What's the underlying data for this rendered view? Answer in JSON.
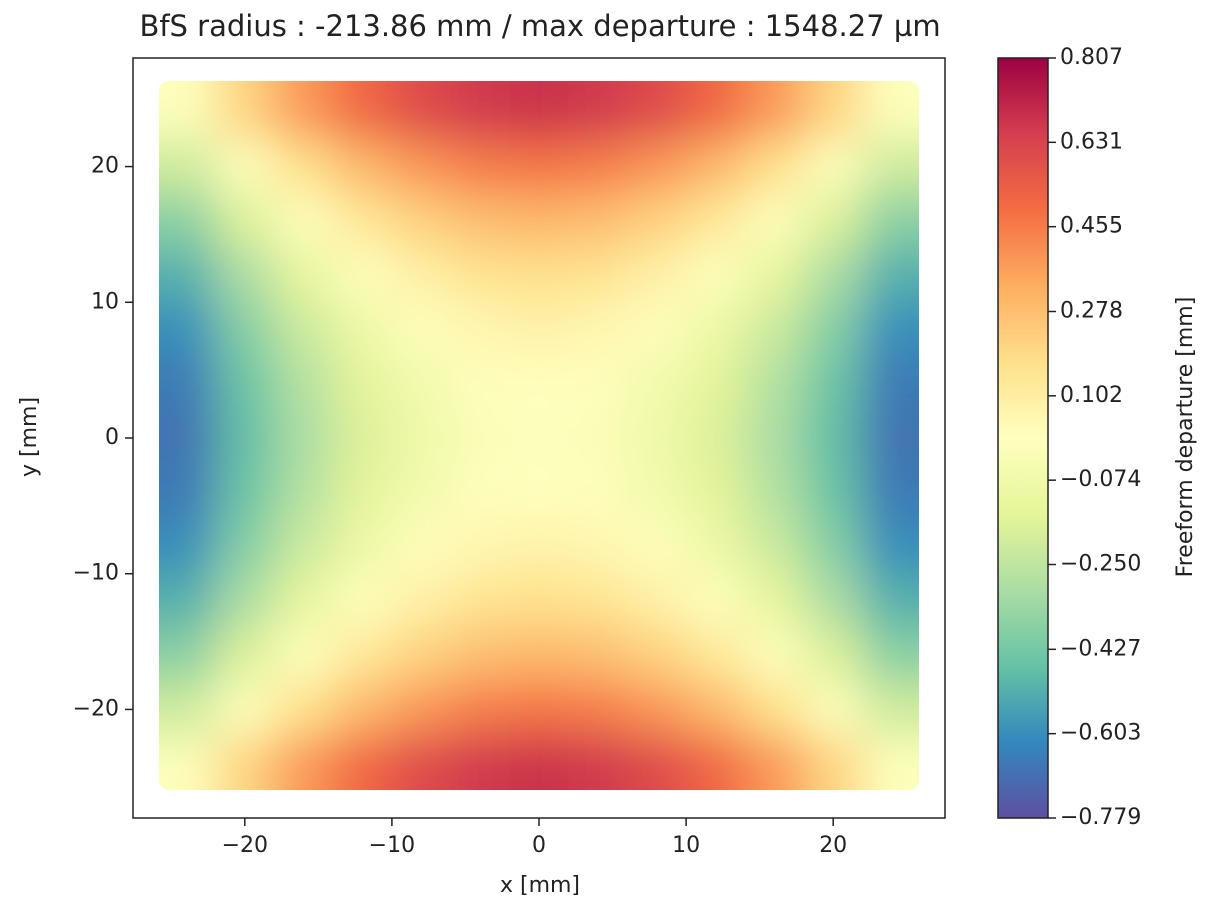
{
  "chart_data": {
    "type": "heatmap",
    "title": "BfS radius : -213.86 mm /  max departure : 1548.27 µm",
    "x_label": "x [mm]",
    "y_label": "y [mm]",
    "colorbar_label": "Freeform departure [mm]",
    "x": [
      -24,
      -20,
      -16,
      -12,
      -8,
      -4,
      0,
      4,
      8,
      12,
      16,
      20,
      24
    ],
    "y": [
      24,
      20,
      16,
      12,
      8,
      4,
      0,
      -4,
      -8,
      -12,
      -16,
      -20,
      -24
    ],
    "z": [
      [
        0,
        0.21,
        0.38,
        0.51,
        0.6,
        0.66,
        0.68,
        0.66,
        0.6,
        0.51,
        0.38,
        0.21,
        0
      ],
      [
        -0.21,
        0,
        0.17,
        0.3,
        0.39,
        0.45,
        0.47,
        0.45,
        0.39,
        0.3,
        0.17,
        0,
        -0.21
      ],
      [
        -0.38,
        -0.17,
        0,
        0.13,
        0.22,
        0.28,
        0.3,
        0.28,
        0.22,
        0.13,
        0,
        -0.17,
        -0.38
      ],
      [
        -0.51,
        -0.3,
        -0.13,
        0,
        0.09,
        0.15,
        0.17,
        0.15,
        0.09,
        0,
        -0.13,
        -0.3,
        -0.51
      ],
      [
        -0.6,
        -0.39,
        -0.22,
        -0.09,
        0,
        0.06,
        0.08,
        0.06,
        0,
        -0.09,
        -0.22,
        -0.39,
        -0.6
      ],
      [
        -0.66,
        -0.45,
        -0.28,
        -0.15,
        -0.06,
        0,
        0.02,
        0,
        -0.06,
        -0.15,
        -0.28,
        -0.45,
        -0.66
      ],
      [
        -0.68,
        -0.47,
        -0.3,
        -0.17,
        -0.08,
        -0.02,
        0,
        -0.02,
        -0.08,
        -0.17,
        -0.3,
        -0.47,
        -0.68
      ],
      [
        -0.66,
        -0.45,
        -0.28,
        -0.15,
        -0.06,
        0,
        0.02,
        0,
        -0.06,
        -0.15,
        -0.28,
        -0.45,
        -0.66
      ],
      [
        -0.6,
        -0.39,
        -0.22,
        -0.09,
        0,
        0.06,
        0.08,
        0.06,
        0,
        -0.09,
        -0.22,
        -0.39,
        -0.6
      ],
      [
        -0.51,
        -0.3,
        -0.13,
        0,
        0.09,
        0.15,
        0.17,
        0.15,
        0.09,
        0,
        -0.13,
        -0.3,
        -0.51
      ],
      [
        -0.38,
        -0.17,
        0,
        0.13,
        0.22,
        0.28,
        0.3,
        0.28,
        0.22,
        0.13,
        0,
        -0.17,
        -0.38
      ],
      [
        -0.21,
        0,
        0.17,
        0.3,
        0.39,
        0.45,
        0.47,
        0.45,
        0.39,
        0.3,
        0.17,
        0,
        -0.21
      ],
      [
        0,
        0.21,
        0.38,
        0.51,
        0.6,
        0.66,
        0.68,
        0.66,
        0.6,
        0.51,
        0.38,
        0.21,
        0
      ]
    ],
    "xlim": [
      -27.6,
      27.6
    ],
    "ylim": [
      -28,
      28
    ],
    "xticks": [
      {
        "value": -20,
        "label": "−20"
      },
      {
        "value": -10,
        "label": "−10"
      },
      0,
      10,
      20
    ],
    "yticks": [
      {
        "value": -20,
        "label": "−20"
      },
      {
        "value": -10,
        "label": "−10"
      },
      0,
      10,
      20
    ],
    "colorbar_lim": [
      -0.779,
      0.807
    ],
    "colorbar_ticks": [
      0.807,
      0.631,
      0.455,
      0.278,
      0.102,
      {
        "value": -0.074,
        "label": "−0.074"
      },
      {
        "value": -0.25,
        "label": "−0.250"
      },
      {
        "value": -0.427,
        "label": "−0.427"
      },
      {
        "value": -0.603,
        "label": "−0.603"
      },
      {
        "value": -0.779,
        "label": "−0.779"
      }
    ],
    "colormap": [
      "#5e4fa2",
      "#3288bd",
      "#66c2a5",
      "#abdda4",
      "#e6f598",
      "#ffffbf",
      "#fee08b",
      "#fdae61",
      "#f46d43",
      "#d53e4f",
      "#9e0142"
    ]
  }
}
